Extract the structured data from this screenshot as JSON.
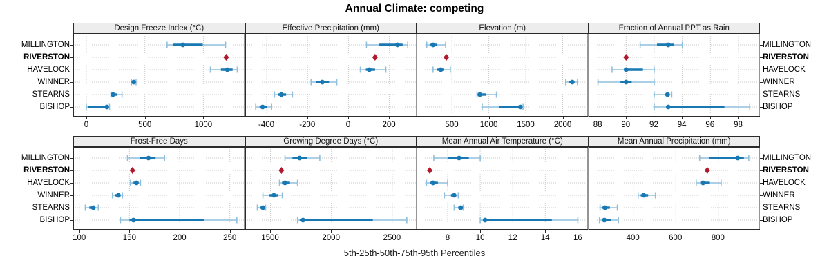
{
  "title": "Annual Climate: competing",
  "caption": "5th-25th-50th-75th-95th Percentiles",
  "stations": [
    "MILLINGTON",
    "RIVERSTON",
    "HAVELOCK",
    "WINNER",
    "STEARNS",
    "BISHOP"
  ],
  "highlight_station": "RIVERSTON",
  "colors": {
    "median_dot": "#1878b4",
    "box_segment": "#1878b4",
    "range_segment": "#8fbfdc",
    "highlight_diamond": "#b2182b",
    "grid": "#c9c9c9",
    "panel_border": "#2b2b2b",
    "strip_bg": "#ededed",
    "text": "#000000"
  },
  "chart_data": [
    {
      "type": "dotplot_percentiles",
      "row": 0,
      "col": 0,
      "title": "Design Freeze Index (°C)",
      "ticks": [
        0,
        500,
        1000
      ],
      "xlim": [
        -112,
        1355
      ],
      "series": [
        {
          "station": "MILLINGTON",
          "percentiles": [
            690,
            740,
            825,
            995,
            1190
          ]
        },
        {
          "station": "RIVERSTON",
          "value": 1195
        },
        {
          "station": "HAVELOCK",
          "percentiles": [
            1060,
            1150,
            1205,
            1250,
            1290
          ]
        },
        {
          "station": "WINNER",
          "percentiles": [
            385,
            395,
            405,
            412,
            425
          ]
        },
        {
          "station": "STEARNS",
          "percentiles": [
            210,
            220,
            228,
            262,
            305
          ]
        },
        {
          "station": "BISHOP",
          "percentiles": [
            0,
            15,
            175,
            185,
            198
          ]
        }
      ]
    },
    {
      "type": "dotplot_percentiles",
      "row": 0,
      "col": 1,
      "title": "Effective Precipitation (mm)",
      "ticks": [
        -400,
        -200,
        0,
        200
      ],
      "xlim": [
        -505,
        335
      ],
      "series": [
        {
          "station": "MILLINGTON",
          "percentiles": [
            88,
            150,
            240,
            265,
            290
          ]
        },
        {
          "station": "RIVERSTON",
          "value": 130
        },
        {
          "station": "HAVELOCK",
          "percentiles": [
            58,
            85,
            102,
            130,
            183
          ]
        },
        {
          "station": "WINNER",
          "percentiles": [
            -183,
            -160,
            -128,
            -95,
            -57
          ]
        },
        {
          "station": "STEARNS",
          "percentiles": [
            -362,
            -345,
            -328,
            -305,
            -274
          ]
        },
        {
          "station": "BISHOP",
          "percentiles": [
            -454,
            -435,
            -420,
            -400,
            -376
          ]
        }
      ]
    },
    {
      "type": "dotplot_percentiles",
      "row": 0,
      "col": 2,
      "title": "Elevation (m)",
      "ticks": [
        500,
        1000,
        1500,
        2000
      ],
      "xlim": [
        22,
        2346
      ],
      "series": [
        {
          "station": "MILLINGTON",
          "percentiles": [
            160,
            200,
            245,
            300,
            415
          ]
        },
        {
          "station": "RIVERSTON",
          "value": 425
        },
        {
          "station": "HAVELOCK",
          "percentiles": [
            245,
            300,
            350,
            395,
            480
          ]
        },
        {
          "station": "WINNER",
          "percentiles": [
            2040,
            2080,
            2130,
            2160,
            2200
          ]
        },
        {
          "station": "STEARNS",
          "percentiles": [
            840,
            855,
            878,
            960,
            1103
          ]
        },
        {
          "station": "BISHOP",
          "percentiles": [
            910,
            1135,
            1426,
            1445,
            1463
          ]
        }
      ]
    },
    {
      "type": "dotplot_percentiles",
      "row": 0,
      "col": 3,
      "title": "Fraction of Annual PPT as Rain",
      "ticks": [
        88,
        90,
        92,
        94,
        96,
        98
      ],
      "xlim": [
        87.33,
        99.55
      ],
      "series": [
        {
          "station": "MILLINGTON",
          "percentiles": [
            91.0,
            92.2,
            93.0,
            93.4,
            94.0
          ]
        },
        {
          "station": "RIVERSTON",
          "value": 90.0
        },
        {
          "station": "HAVELOCK",
          "percentiles": [
            89.0,
            89.9,
            90.0,
            91.2,
            92.0
          ]
        },
        {
          "station": "WINNER",
          "percentiles": [
            88.0,
            89.6,
            90.0,
            90.4,
            92.0
          ]
        },
        {
          "station": "STEARNS",
          "percentiles": [
            92.0,
            92.8,
            92.95,
            93.1,
            93.25
          ]
        },
        {
          "station": "BISHOP",
          "percentiles": [
            92.0,
            92.9,
            93.0,
            97.0,
            98.8
          ]
        }
      ]
    },
    {
      "type": "dotplot_percentiles",
      "row": 1,
      "col": 0,
      "title": "Frost-Free Days",
      "ticks": [
        100,
        150,
        200,
        250
      ],
      "xlim": [
        94,
        265
      ],
      "series": [
        {
          "station": "MILLINGTON",
          "percentiles": [
            148,
            160,
            169,
            176,
            185
          ]
        },
        {
          "station": "RIVERSTON",
          "value": 153
        },
        {
          "station": "HAVELOCK",
          "percentiles": [
            151,
            154,
            157,
            159,
            161
          ]
        },
        {
          "station": "WINNER",
          "percentiles": [
            133,
            136,
            139,
            141,
            143
          ]
        },
        {
          "station": "STEARNS",
          "percentiles": [
            106,
            110,
            114,
            116,
            119
          ]
        },
        {
          "station": "BISHOP",
          "percentiles": [
            141,
            150,
            154,
            224,
            257
          ]
        }
      ]
    },
    {
      "type": "dotplot_percentiles",
      "row": 1,
      "col": 1,
      "title": "Growing Degree Days (°C)",
      "ticks": [
        1500,
        2000,
        2500
      ],
      "xlim": [
        1293,
        2702
      ],
      "series": [
        {
          "station": "MILLINGTON",
          "percentiles": [
            1619,
            1680,
            1739,
            1800,
            1905
          ]
        },
        {
          "station": "RIVERSTON",
          "value": 1590
        },
        {
          "station": "HAVELOCK",
          "percentiles": [
            1574,
            1595,
            1619,
            1660,
            1722
          ]
        },
        {
          "station": "WINNER",
          "percentiles": [
            1438,
            1490,
            1528,
            1560,
            1597
          ]
        },
        {
          "station": "STEARNS",
          "percentiles": [
            1392,
            1415,
            1438,
            1448,
            1460
          ]
        },
        {
          "station": "BISHOP",
          "percentiles": [
            1722,
            1740,
            1767,
            2340,
            2619
          ]
        }
      ]
    },
    {
      "type": "dotplot_percentiles",
      "row": 1,
      "col": 2,
      "title": "Mean Annual Air Temperature (°C)",
      "ticks": [
        8,
        10,
        12,
        14,
        16
      ],
      "xlim": [
        6.09,
        16.64
      ],
      "series": [
        {
          "station": "MILLINGTON",
          "percentiles": [
            7.15,
            8.0,
            8.7,
            9.3,
            10.0
          ]
        },
        {
          "station": "RIVERSTON",
          "value": 6.9
        },
        {
          "station": "HAVELOCK",
          "percentiles": [
            6.7,
            6.9,
            7.1,
            7.4,
            8.0
          ]
        },
        {
          "station": "WINNER",
          "percentiles": [
            7.8,
            8.2,
            8.4,
            8.5,
            8.65
          ]
        },
        {
          "station": "STEARNS",
          "percentiles": [
            8.4,
            8.65,
            8.8,
            8.85,
            8.95
          ]
        },
        {
          "station": "BISHOP",
          "percentiles": [
            10.0,
            10.2,
            10.3,
            14.4,
            16.0
          ]
        }
      ]
    },
    {
      "type": "dotplot_percentiles",
      "row": 1,
      "col": 3,
      "title": "Mean Annual Precipitation (mm)",
      "ticks": [
        400,
        600,
        800
      ],
      "xlim": [
        190,
        997
      ],
      "series": [
        {
          "station": "MILLINGTON",
          "percentiles": [
            712,
            755,
            891,
            920,
            943
          ]
        },
        {
          "station": "RIVERSTON",
          "value": 748
        },
        {
          "station": "HAVELOCK",
          "percentiles": [
            696,
            715,
            728,
            760,
            813
          ]
        },
        {
          "station": "WINNER",
          "percentiles": [
            423,
            435,
            449,
            470,
            504
          ]
        },
        {
          "station": "STEARNS",
          "percentiles": [
            244,
            255,
            267,
            290,
            325
          ]
        },
        {
          "station": "BISHOP",
          "percentiles": [
            241,
            255,
            264,
            295,
            330
          ]
        }
      ]
    }
  ]
}
